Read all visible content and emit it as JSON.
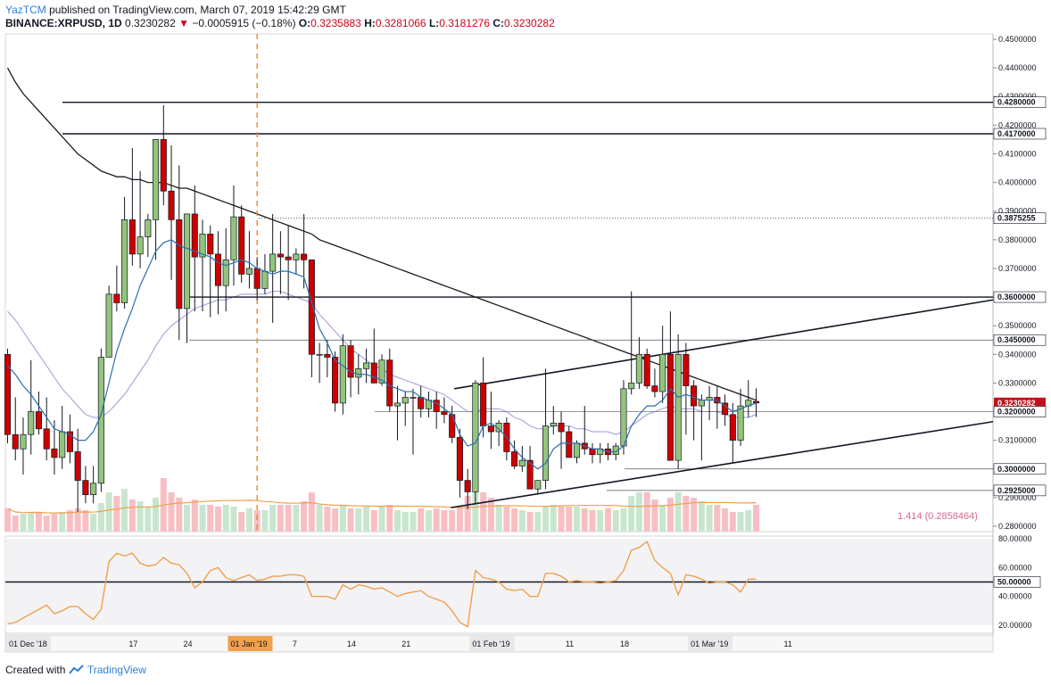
{
  "header": {
    "author": "YazTCM",
    "published": "published on TradingView.com, March 07, 2019 15:42:29 GMT",
    "symbol": "BINANCE:XRPUSD, 1D",
    "last": "0.3230282",
    "change": "−0.0005915 (−0.18%)",
    "o_label": "O:",
    "o": "0.3235883",
    "h_label": "H:",
    "h": "0.3281066",
    "l_label": "L:",
    "l": "0.3181276",
    "c_label": "C:",
    "c": "0.3230282"
  },
  "footer": {
    "created_with": "Created with",
    "brand": "TradingView"
  },
  "colors": {
    "up": "#6fa84d",
    "down": "#c0121b",
    "up_fill": "#93c47d",
    "down_fill": "#cc0000",
    "rsi": "#f0a04b",
    "ma20": "#2a6fb0",
    "ma50": "#9d99d9",
    "ma200": "#1b1b1b"
  },
  "chart_data": {
    "type": "candlestick",
    "ylim": [
      0.28,
      0.45
    ],
    "price_ticks": [
      "0.4500000",
      "0.4400000",
      "0.4300000",
      "0.4200000",
      "0.4100000",
      "0.4000000",
      "0.3900000",
      "0.3800000",
      "0.3700000",
      "0.3600000",
      "0.3500000",
      "0.3400000",
      "0.3300000",
      "0.3200000",
      "0.3100000",
      "0.3000000",
      "0.2900000",
      "0.2800000"
    ],
    "tick_values": [
      0.45,
      0.44,
      0.43,
      0.42,
      0.41,
      0.4,
      0.39,
      0.38,
      0.37,
      0.36,
      0.35,
      0.34,
      0.33,
      0.32,
      0.31,
      0.3,
      0.29,
      0.28
    ],
    "level_labels": [
      {
        "value": 0.428,
        "text": "0.4280000"
      },
      {
        "value": 0.417,
        "text": "0.4170000"
      },
      {
        "value": 0.3875255,
        "text": "0.3875255"
      },
      {
        "value": 0.36,
        "text": "0.3600000"
      },
      {
        "value": 0.345,
        "text": "0.3450000"
      },
      {
        "value": 0.3230282,
        "text": "0.3230282",
        "current": true
      },
      {
        "value": 0.32,
        "text": "0.3200000"
      },
      {
        "value": 0.3,
        "text": "0.3000000"
      },
      {
        "value": 0.2925,
        "text": "0.2925000"
      }
    ],
    "x_labels": [
      {
        "i": 0,
        "text": "01 Dec '18"
      },
      {
        "i": 16,
        "text": "17"
      },
      {
        "i": 23,
        "text": "24"
      },
      {
        "i": 31,
        "text": "01 Jan '19",
        "highlight": true
      },
      {
        "i": 37,
        "text": "7"
      },
      {
        "i": 44,
        "text": "14"
      },
      {
        "i": 51,
        "text": "21"
      },
      {
        "i": 62,
        "text": "01 Feb '19"
      },
      {
        "i": 72,
        "text": "11"
      },
      {
        "i": 79,
        "text": "18"
      },
      {
        "i": 90,
        "text": "01 Mar '19"
      },
      {
        "i": 100,
        "text": "11"
      }
    ],
    "volume_label": "1.414",
    "volume_value": "(0.2858464)",
    "rsi_ticks": [
      "80.00000",
      "60.00000",
      "50.00000",
      "40.00000",
      "20.00000"
    ],
    "rsi_tick_values": [
      80,
      60,
      50,
      40,
      20
    ],
    "candles": [
      [
        0.34,
        0.342,
        0.309,
        0.312
      ],
      [
        0.312,
        0.325,
        0.303,
        0.307
      ],
      [
        0.307,
        0.318,
        0.298,
        0.312
      ],
      [
        0.312,
        0.338,
        0.305,
        0.32
      ],
      [
        0.32,
        0.327,
        0.312,
        0.314
      ],
      [
        0.314,
        0.325,
        0.303,
        0.307
      ],
      [
        0.307,
        0.317,
        0.298,
        0.304
      ],
      [
        0.304,
        0.322,
        0.3,
        0.313
      ],
      [
        0.313,
        0.319,
        0.302,
        0.306
      ],
      [
        0.306,
        0.314,
        0.285,
        0.296
      ],
      [
        0.296,
        0.301,
        0.288,
        0.291
      ],
      [
        0.291,
        0.301,
        0.288,
        0.295
      ],
      [
        0.295,
        0.342,
        0.292,
        0.339
      ],
      [
        0.339,
        0.364,
        0.339,
        0.361
      ],
      [
        0.361,
        0.371,
        0.355,
        0.358
      ],
      [
        0.358,
        0.395,
        0.356,
        0.387
      ],
      [
        0.387,
        0.412,
        0.371,
        0.375
      ],
      [
        0.375,
        0.404,
        0.37,
        0.381
      ],
      [
        0.381,
        0.389,
        0.374,
        0.387
      ],
      [
        0.387,
        0.415,
        0.373,
        0.415
      ],
      [
        0.415,
        0.427,
        0.392,
        0.397
      ],
      [
        0.397,
        0.413,
        0.366,
        0.387
      ],
      [
        0.387,
        0.406,
        0.345,
        0.356
      ],
      [
        0.356,
        0.388,
        0.344,
        0.389
      ],
      [
        0.389,
        0.399,
        0.355,
        0.374
      ],
      [
        0.374,
        0.387,
        0.355,
        0.382
      ],
      [
        0.382,
        0.385,
        0.353,
        0.375
      ],
      [
        0.375,
        0.383,
        0.354,
        0.364
      ],
      [
        0.364,
        0.384,
        0.355,
        0.373
      ],
      [
        0.373,
        0.399,
        0.364,
        0.388
      ],
      [
        0.388,
        0.392,
        0.365,
        0.368
      ],
      [
        0.368,
        0.383,
        0.363,
        0.37
      ],
      [
        0.37,
        0.374,
        0.359,
        0.363
      ],
      [
        0.363,
        0.375,
        0.361,
        0.369
      ],
      [
        0.369,
        0.389,
        0.351,
        0.375
      ],
      [
        0.375,
        0.383,
        0.361,
        0.374
      ],
      [
        0.374,
        0.385,
        0.359,
        0.373
      ],
      [
        0.373,
        0.377,
        0.368,
        0.375
      ],
      [
        0.375,
        0.389,
        0.363,
        0.373
      ],
      [
        0.373,
        0.373,
        0.332,
        0.34
      ],
      [
        0.34,
        0.344,
        0.33,
        0.34
      ],
      [
        0.34,
        0.345,
        0.332,
        0.339
      ],
      [
        0.339,
        0.341,
        0.32,
        0.323
      ],
      [
        0.323,
        0.347,
        0.319,
        0.343
      ],
      [
        0.343,
        0.345,
        0.325,
        0.332
      ],
      [
        0.332,
        0.34,
        0.326,
        0.335
      ],
      [
        0.335,
        0.342,
        0.33,
        0.337
      ],
      [
        0.337,
        0.349,
        0.33,
        0.33
      ],
      [
        0.33,
        0.34,
        0.329,
        0.338
      ],
      [
        0.338,
        0.342,
        0.32,
        0.322
      ],
      [
        0.322,
        0.329,
        0.31,
        0.323
      ],
      [
        0.323,
        0.327,
        0.315,
        0.325
      ],
      [
        0.325,
        0.328,
        0.305,
        0.325
      ],
      [
        0.325,
        0.329,
        0.318,
        0.321
      ],
      [
        0.321,
        0.327,
        0.318,
        0.324
      ],
      [
        0.324,
        0.327,
        0.314,
        0.32
      ],
      [
        0.32,
        0.325,
        0.316,
        0.319
      ],
      [
        0.319,
        0.322,
        0.309,
        0.311
      ],
      [
        0.311,
        0.314,
        0.29,
        0.296
      ],
      [
        0.296,
        0.3,
        0.286,
        0.292
      ],
      [
        0.292,
        0.331,
        0.288,
        0.33
      ],
      [
        0.33,
        0.339,
        0.311,
        0.315
      ],
      [
        0.315,
        0.327,
        0.307,
        0.313
      ],
      [
        0.313,
        0.317,
        0.308,
        0.316
      ],
      [
        0.316,
        0.318,
        0.303,
        0.306
      ],
      [
        0.306,
        0.31,
        0.3,
        0.301
      ],
      [
        0.301,
        0.308,
        0.299,
        0.303
      ],
      [
        0.303,
        0.308,
        0.294,
        0.293
      ],
      [
        0.293,
        0.296,
        0.291,
        0.296
      ],
      [
        0.296,
        0.335,
        0.293,
        0.315
      ],
      [
        0.315,
        0.322,
        0.312,
        0.316
      ],
      [
        0.316,
        0.32,
        0.3,
        0.313
      ],
      [
        0.313,
        0.315,
        0.304,
        0.304
      ],
      [
        0.304,
        0.31,
        0.302,
        0.309
      ],
      [
        0.309,
        0.322,
        0.305,
        0.307
      ],
      [
        0.307,
        0.309,
        0.302,
        0.305
      ],
      [
        0.305,
        0.309,
        0.302,
        0.307
      ],
      [
        0.307,
        0.309,
        0.303,
        0.305
      ],
      [
        0.305,
        0.309,
        0.303,
        0.308
      ],
      [
        0.308,
        0.331,
        0.305,
        0.328
      ],
      [
        0.328,
        0.362,
        0.326,
        0.33
      ],
      [
        0.33,
        0.346,
        0.328,
        0.34
      ],
      [
        0.34,
        0.342,
        0.328,
        0.329
      ],
      [
        0.329,
        0.335,
        0.325,
        0.327
      ],
      [
        0.327,
        0.35,
        0.323,
        0.34
      ],
      [
        0.34,
        0.355,
        0.304,
        0.303
      ],
      [
        0.303,
        0.347,
        0.3,
        0.34
      ],
      [
        0.34,
        0.344,
        0.312,
        0.329
      ],
      [
        0.329,
        0.331,
        0.31,
        0.322
      ],
      [
        0.322,
        0.326,
        0.303,
        0.324
      ],
      [
        0.324,
        0.329,
        0.317,
        0.325
      ],
      [
        0.325,
        0.329,
        0.314,
        0.323
      ],
      [
        0.323,
        0.326,
        0.315,
        0.319
      ],
      [
        0.319,
        0.323,
        0.302,
        0.31
      ],
      [
        0.31,
        0.328,
        0.308,
        0.322
      ],
      [
        0.322,
        0.331,
        0.318,
        0.324
      ],
      [
        0.3235883,
        0.3281066,
        0.3181276,
        0.3230282
      ]
    ],
    "volume": [
      26,
      18,
      20,
      22,
      22,
      18,
      20,
      22,
      24,
      26,
      24,
      20,
      32,
      44,
      40,
      48,
      36,
      34,
      28,
      38,
      60,
      44,
      38,
      30,
      36,
      30,
      30,
      28,
      30,
      28,
      22,
      26,
      24,
      24,
      30,
      30,
      30,
      30,
      34,
      44,
      30,
      28,
      26,
      30,
      26,
      26,
      28,
      24,
      28,
      30,
      24,
      22,
      22,
      26,
      24,
      26,
      24,
      24,
      28,
      40,
      44,
      44,
      38,
      30,
      28,
      26,
      24,
      22,
      22,
      28,
      30,
      28,
      28,
      28,
      26,
      24,
      24,
      26,
      24,
      26,
      40,
      44,
      44,
      36,
      30,
      38,
      44,
      40,
      38,
      34,
      30,
      30,
      26,
      22,
      22,
      24,
      30
    ],
    "ma20": [
      0.336,
      0.333,
      0.329,
      0.326,
      0.322,
      0.318,
      0.314,
      0.313,
      0.312,
      0.31,
      0.31,
      0.313,
      0.319,
      0.33,
      0.341,
      0.349,
      0.356,
      0.364,
      0.37,
      0.376,
      0.379,
      0.38,
      0.378,
      0.377,
      0.376,
      0.375,
      0.374,
      0.372,
      0.371,
      0.372,
      0.373,
      0.372,
      0.37,
      0.369,
      0.368,
      0.369,
      0.369,
      0.368,
      0.367,
      0.358,
      0.349,
      0.344,
      0.338,
      0.336,
      0.334,
      0.333,
      0.333,
      0.332,
      0.331,
      0.329,
      0.328,
      0.327,
      0.327,
      0.325,
      0.324,
      0.323,
      0.321,
      0.319,
      0.312,
      0.308,
      0.309,
      0.315,
      0.316,
      0.314,
      0.311,
      0.307,
      0.304,
      0.302,
      0.3,
      0.302,
      0.307,
      0.309,
      0.309,
      0.309,
      0.308,
      0.307,
      0.307,
      0.306,
      0.306,
      0.308,
      0.315,
      0.319,
      0.322,
      0.322,
      0.324,
      0.328,
      0.325,
      0.326,
      0.325,
      0.324,
      0.324,
      0.324,
      0.322,
      0.32,
      0.321,
      0.322,
      0.323
    ],
    "ma50": [
      0.355,
      0.352,
      0.348,
      0.344,
      0.34,
      0.336,
      0.332,
      0.328,
      0.325,
      0.322,
      0.319,
      0.318,
      0.318,
      0.32,
      0.323,
      0.326,
      0.33,
      0.334,
      0.338,
      0.343,
      0.347,
      0.35,
      0.352,
      0.354,
      0.356,
      0.357,
      0.358,
      0.359,
      0.359,
      0.36,
      0.361,
      0.361,
      0.361,
      0.361,
      0.362,
      0.362,
      0.361,
      0.36,
      0.359,
      0.358,
      0.354,
      0.351,
      0.348,
      0.345,
      0.342,
      0.34,
      0.338,
      0.336,
      0.335,
      0.333,
      0.332,
      0.331,
      0.33,
      0.329,
      0.328,
      0.327,
      0.326,
      0.324,
      0.322,
      0.32,
      0.32,
      0.321,
      0.321,
      0.321,
      0.32,
      0.318,
      0.317,
      0.315,
      0.314,
      0.314,
      0.315,
      0.315,
      0.315,
      0.314,
      0.314,
      0.313,
      0.313,
      0.313,
      0.312,
      0.313,
      0.315,
      0.317,
      0.319,
      0.32,
      0.321,
      0.322,
      0.321,
      0.321,
      0.321,
      0.32,
      0.32,
      0.32,
      0.319,
      0.318,
      0.318,
      0.318,
      0.319
    ],
    "ma200": [
      0.44,
      0.435,
      0.431,
      0.428,
      0.425,
      0.422,
      0.419,
      0.416,
      0.413,
      0.41,
      0.408,
      0.406,
      0.404,
      0.403,
      0.402,
      0.402,
      0.401,
      0.401,
      0.4,
      0.4,
      0.4,
      0.399,
      0.398,
      0.398,
      0.397,
      0.396,
      0.395,
      0.394,
      0.393,
      0.392,
      0.391,
      0.39,
      0.389,
      0.388,
      0.387,
      0.386,
      0.385,
      0.384,
      0.383,
      0.382,
      0.38,
      0.379,
      0.378,
      0.377,
      0.376,
      0.375,
      0.374,
      0.373,
      0.372,
      0.371,
      0.37,
      0.369,
      0.368,
      0.367,
      0.366,
      0.365,
      0.364,
      0.363,
      0.362,
      0.361,
      0.36,
      0.359,
      0.358,
      0.357,
      0.356,
      0.355,
      0.354,
      0.353,
      0.352,
      0.351,
      0.35,
      0.349,
      0.348,
      0.347,
      0.346,
      0.345,
      0.344,
      0.343,
      0.342,
      0.341,
      0.34,
      0.339,
      0.338,
      0.337,
      0.336,
      0.335,
      0.334,
      0.333,
      0.332,
      0.331,
      0.33,
      0.329,
      0.328,
      0.327,
      0.326,
      0.325,
      0.324
    ],
    "rsi": [
      21,
      22,
      25,
      28,
      31,
      34,
      28,
      30,
      33,
      33,
      28,
      24,
      31,
      64,
      70,
      68,
      70,
      63,
      61,
      62,
      67,
      63,
      62,
      56,
      46,
      50,
      58,
      60,
      53,
      51,
      53,
      55,
      51,
      52,
      54,
      54,
      55,
      55,
      54,
      40,
      40,
      40,
      38,
      48,
      45,
      48,
      47,
      45,
      46,
      43,
      40,
      42,
      43,
      44,
      40,
      38,
      36,
      30,
      22,
      19,
      58,
      53,
      52,
      50,
      45,
      44,
      45,
      40,
      40,
      56,
      56,
      54,
      50,
      51,
      50,
      50,
      49,
      50,
      51,
      58,
      72,
      74,
      78,
      65,
      60,
      56,
      41,
      55,
      54,
      52,
      49,
      50,
      50,
      48,
      43,
      52,
      52
    ]
  }
}
